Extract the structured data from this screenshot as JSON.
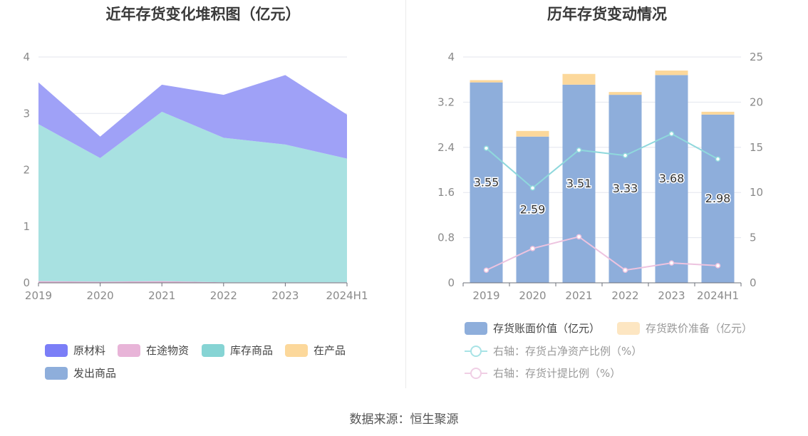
{
  "left_chart": {
    "title": "近年存货变化堆积图（亿元）",
    "legend": [
      {
        "name": "原材料",
        "color": "#7b7ef7"
      },
      {
        "name": "在途物资",
        "color": "#e8b4d8"
      },
      {
        "name": "库存商品",
        "color": "#86d4d4"
      },
      {
        "name": "在产品",
        "color": "#fcd89b"
      },
      {
        "name": "发出商品",
        "color": "#8eaedb"
      }
    ]
  },
  "right_chart": {
    "title": "历年存货变动情况",
    "legend": [
      {
        "name": "存货账面价值（亿元）",
        "color": "#8eaedb"
      },
      {
        "name": "存货跌价准备（亿元）",
        "color": "#fde6c2"
      },
      {
        "name": "右轴：存货占净资产比例（%）",
        "color": "#8fd8dc"
      },
      {
        "name": "右轴：存货计提比例（%）",
        "color": "#edc3df"
      }
    ]
  },
  "chart_data": [
    {
      "type": "area",
      "title": "近年存货变化堆积图（亿元）",
      "categories": [
        "2019",
        "2020",
        "2021",
        "2022",
        "2023",
        "2024H1"
      ],
      "ylim": [
        0,
        4
      ],
      "yticks": [
        "0",
        "1",
        "2",
        "3",
        "4"
      ],
      "stacked": true,
      "series": [
        {
          "name": "在途物资",
          "color": "#e8b4d8",
          "values": [
            0.03,
            0.02,
            0.03,
            0.01,
            0.01,
            0.01
          ]
        },
        {
          "name": "库存商品",
          "color": "#a8e1e1",
          "values": [
            2.78,
            2.19,
            3.0,
            2.56,
            2.44,
            2.19
          ]
        },
        {
          "name": "原材料",
          "color": "#9fa1f7",
          "values": [
            0.74,
            0.38,
            0.48,
            0.76,
            1.23,
            0.78
          ]
        }
      ]
    },
    {
      "type": "bar",
      "title": "历年存货变动情况",
      "categories": [
        "2019",
        "2020",
        "2021",
        "2022",
        "2023",
        "2024H1"
      ],
      "ylim": [
        0,
        4
      ],
      "yticks": [
        "0",
        "0.8",
        "1.6",
        "2.4",
        "3.2",
        "4"
      ],
      "y2lim": [
        0,
        25
      ],
      "y2ticks": [
        "0",
        "5",
        "10",
        "15",
        "20",
        "25"
      ],
      "bars": [
        {
          "name": "存货账面价值（亿元）",
          "color": "#8eaedb",
          "values": [
            3.55,
            2.59,
            3.51,
            3.33,
            3.68,
            2.98
          ],
          "labels": [
            "3.55",
            "2.59",
            "3.51",
            "3.33",
            "3.68",
            "2.98"
          ]
        },
        {
          "name": "存货跌价准备（亿元）",
          "color": "#fcd89b",
          "values": [
            0.04,
            0.1,
            0.19,
            0.05,
            0.08,
            0.05
          ]
        }
      ],
      "lines": [
        {
          "name": "右轴：存货占净资产比例（%）",
          "color": "#8fd8dc",
          "values": [
            14.9,
            10.5,
            14.7,
            14.1,
            16.5,
            13.7
          ]
        },
        {
          "name": "右轴：存货计提比例（%）",
          "color": "#edc3df",
          "values": [
            1.4,
            3.8,
            5.1,
            1.4,
            2.2,
            1.9
          ]
        }
      ]
    }
  ],
  "source": "数据来源：恒生聚源"
}
